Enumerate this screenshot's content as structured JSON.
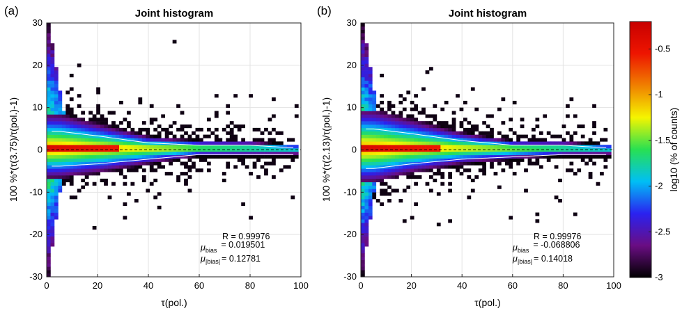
{
  "figure": {
    "panels": [
      {
        "letter": "(a)",
        "title": "Joint histogram",
        "xlabel": "τ(pol.)",
        "ylabel": "100 %*(τ(3.75)/τ(pol.)-1)",
        "stats": {
          "R": "R = 0.99976",
          "mu_bias_symbol": "μ",
          "mu_bias_sub": "bias",
          "mu_bias_value": "= 0.019501",
          "mu_absbias_symbol": "μ",
          "mu_absbias_sub": "|bias|",
          "mu_absbias_value": "= 0.12781"
        }
      },
      {
        "letter": "(b)",
        "title": "Joint histogram",
        "xlabel": "τ(pol.)",
        "ylabel": "100 %*(τ(2.13)/τ(pol.)-1)",
        "stats": {
          "R": "R = 0.99976",
          "mu_bias_symbol": "μ",
          "mu_bias_sub": "bias",
          "mu_bias_value": "= -0.068806",
          "mu_absbias_symbol": "μ",
          "mu_absbias_sub": "|bias|",
          "mu_absbias_value": "= 0.14018"
        }
      }
    ],
    "colorbar": {
      "label": "log10 (% of counts)",
      "range": [
        -3,
        -0.2
      ],
      "ticks": [
        "-0.5",
        "-1",
        "-1.5",
        "-2",
        "-2.5",
        "-3"
      ],
      "colormap": "jet-with-black-low-end",
      "colors": [
        "#000000",
        "#6a0d83",
        "#2a22f0",
        "#00bff5",
        "#28e052",
        "#f5f500",
        "#f08000",
        "#ee1500",
        "#c80000"
      ]
    }
  },
  "chart_data": [
    {
      "type": "heatmap",
      "title": "Joint histogram",
      "xlabel": "τ(pol.)",
      "ylabel": "100 %*(τ(3.75)/τ(pol.)-1)",
      "xlim": [
        0,
        100
      ],
      "ylim": [
        -30,
        30
      ],
      "xticks": [
        0,
        20,
        40,
        60,
        80,
        100
      ],
      "yticks": [
        -30,
        -20,
        -10,
        0,
        10,
        20,
        30
      ],
      "grid": true,
      "zero_reference_line": "dashed",
      "color_value": "log10 (% of counts)",
      "color_range": [
        -3,
        -0.2
      ],
      "annotations": {
        "R": 0.99976,
        "mu_bias": 0.019501,
        "mu_absbias": 0.12781
      },
      "distribution": {
        "core_band": {
          "x_range": [
            0,
            28
          ],
          "y_range": [
            -1,
            1
          ],
          "log10_pct": -0.3
        },
        "left_spike_up": {
          "x_range": [
            0,
            8
          ],
          "y_range": [
            0,
            30
          ]
        },
        "left_spike_down": {
          "x_range": [
            0,
            6
          ],
          "y_range": [
            -30,
            0
          ]
        },
        "upper_envelope_y_at_x": [
          [
            5,
            8
          ],
          [
            20,
            6
          ],
          [
            40,
            3
          ],
          [
            60,
            2
          ],
          [
            80,
            2
          ],
          [
            95,
            1
          ]
        ],
        "lower_envelope_y_at_x": [
          [
            5,
            -7
          ],
          [
            20,
            -6
          ],
          [
            40,
            -4
          ],
          [
            60,
            -2
          ],
          [
            80,
            -2
          ],
          [
            95,
            -2
          ]
        ]
      }
    },
    {
      "type": "heatmap",
      "title": "Joint histogram",
      "xlabel": "τ(pol.)",
      "ylabel": "100 %*(τ(2.13)/τ(pol.)-1)",
      "xlim": [
        0,
        100
      ],
      "ylim": [
        -30,
        30
      ],
      "xticks": [
        0,
        20,
        40,
        60,
        80,
        100
      ],
      "yticks": [
        -30,
        -20,
        -10,
        0,
        10,
        20,
        30
      ],
      "grid": true,
      "zero_reference_line": "dashed",
      "color_value": "log10 (% of counts)",
      "color_range": [
        -3,
        -0.2
      ],
      "annotations": {
        "R": 0.99976,
        "mu_bias": -0.068806,
        "mu_absbias": 0.14018
      },
      "distribution": {
        "core_band": {
          "x_range": [
            0,
            30
          ],
          "y_range": [
            -1,
            1
          ],
          "log10_pct": -0.3
        },
        "left_spike_up": {
          "x_range": [
            0,
            8
          ],
          "y_range": [
            0,
            30
          ]
        },
        "left_spike_down": {
          "x_range": [
            0,
            6
          ],
          "y_range": [
            -30,
            0
          ]
        },
        "upper_envelope_y_at_x": [
          [
            5,
            9
          ],
          [
            20,
            7
          ],
          [
            40,
            4
          ],
          [
            60,
            2
          ],
          [
            80,
            2
          ],
          [
            95,
            1
          ]
        ],
        "lower_envelope_y_at_x": [
          [
            5,
            -8
          ],
          [
            20,
            -6
          ],
          [
            40,
            -4
          ],
          [
            60,
            -3
          ],
          [
            80,
            -2
          ],
          [
            95,
            -2
          ]
        ]
      }
    }
  ]
}
